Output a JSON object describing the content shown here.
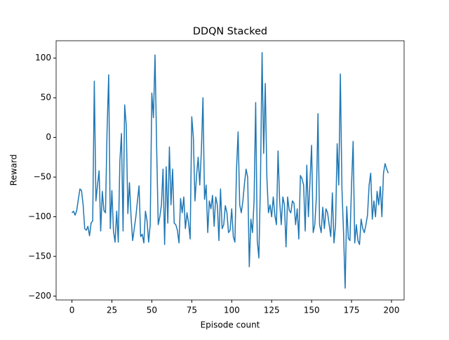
{
  "chart_data": {
    "type": "line",
    "title": "DDQN Stacked",
    "x_label": "Episode count",
    "y_label": "Reward",
    "color": "#1f77b4",
    "x": [
      0,
      1,
      2,
      3,
      4,
      5,
      6,
      7,
      8,
      9,
      10,
      11,
      12,
      13,
      14,
      15,
      16,
      17,
      18,
      19,
      20,
      21,
      22,
      23,
      24,
      25,
      26,
      27,
      28,
      29,
      30,
      31,
      32,
      33,
      34,
      35,
      36,
      37,
      38,
      39,
      40,
      41,
      42,
      43,
      44,
      45,
      46,
      47,
      48,
      49,
      50,
      51,
      52,
      53,
      54,
      55,
      56,
      57,
      58,
      59,
      60,
      61,
      62,
      63,
      64,
      65,
      66,
      67,
      68,
      69,
      70,
      71,
      72,
      73,
      74,
      75,
      76,
      77,
      78,
      79,
      80,
      81,
      82,
      83,
      84,
      85,
      86,
      87,
      88,
      89,
      90,
      91,
      92,
      93,
      94,
      95,
      96,
      97,
      98,
      99,
      100,
      101,
      102,
      103,
      104,
      105,
      106,
      107,
      108,
      109,
      110,
      111,
      112,
      113,
      114,
      115,
      116,
      117,
      118,
      119,
      120,
      121,
      122,
      123,
      124,
      125,
      126,
      127,
      128,
      129,
      130,
      131,
      132,
      133,
      134,
      135,
      136,
      137,
      138,
      139,
      140,
      141,
      142,
      143,
      144,
      145,
      146,
      147,
      148,
      149,
      150,
      151,
      152,
      153,
      154,
      155,
      156,
      157,
      158,
      159,
      160,
      161,
      162,
      163,
      164,
      165,
      166,
      167,
      168,
      169,
      170,
      171,
      172,
      173,
      174,
      175,
      176,
      177,
      178,
      179,
      180,
      181,
      182,
      183,
      184,
      185,
      186,
      187,
      188,
      189,
      190,
      191,
      192,
      193,
      194,
      195,
      196,
      197,
      198
    ],
    "values": [
      -95,
      -93,
      -98,
      -92,
      -78,
      -65,
      -67,
      -85,
      -115,
      -117,
      -112,
      -124,
      -108,
      -105,
      71,
      -80,
      -60,
      -42,
      -118,
      -68,
      -92,
      -95,
      10,
      79,
      -115,
      -67,
      -118,
      -132,
      -93,
      -132,
      -30,
      5,
      -118,
      41,
      15,
      -96,
      -57,
      -100,
      -130,
      -115,
      -100,
      -80,
      -61,
      -125,
      -122,
      -133,
      -93,
      -105,
      -132,
      -110,
      56,
      25,
      104,
      -10,
      -110,
      -100,
      -85,
      -40,
      -135,
      -37,
      -108,
      -12,
      -85,
      -40,
      -108,
      -110,
      -117,
      -133,
      -77,
      -95,
      -75,
      -115,
      -95,
      -108,
      -128,
      26,
      0,
      -80,
      -48,
      -25,
      -60,
      -18,
      50,
      -78,
      -60,
      -120,
      -80,
      -90,
      -73,
      -112,
      -75,
      -85,
      -130,
      -65,
      -115,
      -110,
      -86,
      -95,
      -120,
      -117,
      -90,
      -125,
      -132,
      -40,
      7,
      -85,
      -95,
      -80,
      -58,
      -40,
      -50,
      -163,
      -103,
      -120,
      -80,
      44,
      -130,
      -152,
      -55,
      107,
      -20,
      68,
      -50,
      -95,
      -85,
      -100,
      -75,
      -98,
      -110,
      -17,
      -80,
      -110,
      -75,
      -85,
      -138,
      -75,
      -92,
      -95,
      -80,
      -83,
      -110,
      -90,
      -128,
      -48,
      -52,
      -60,
      -118,
      -35,
      -100,
      -55,
      -10,
      -120,
      -110,
      -75,
      30,
      -110,
      -120,
      -88,
      -115,
      -90,
      -95,
      -110,
      -125,
      -70,
      -133,
      -110,
      -8,
      -60,
      80,
      -65,
      -120,
      -190,
      -87,
      -127,
      -130,
      -60,
      -5,
      -133,
      -110,
      -130,
      -135,
      -103,
      -115,
      -120,
      -110,
      -98,
      -60,
      -45,
      -103,
      -80,
      -100,
      -68,
      -85,
      -62,
      -100,
      -45,
      -33,
      -40,
      -45
    ],
    "xlim": [
      -9.9,
      207.9
    ],
    "ylim": [
      -204.9,
      121.9
    ],
    "xticks": [
      0,
      25,
      50,
      75,
      100,
      125,
      150,
      175,
      200
    ],
    "yticks": [
      {
        "value": -200,
        "label": "−200"
      },
      {
        "value": -150,
        "label": "−150"
      },
      {
        "value": -100,
        "label": "−100"
      },
      {
        "value": -50,
        "label": "−50"
      },
      0,
      50,
      100
    ]
  }
}
